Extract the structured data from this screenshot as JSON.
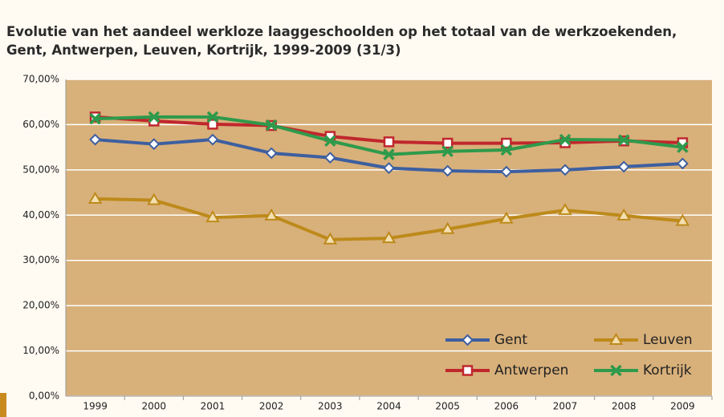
{
  "chart_data": {
    "type": "line",
    "title": "Evolutie van het aandeel werkloze laaggeschoolden op het totaal van de werkzoekenden,",
    "subtitle": "Gent, Antwerpen, Leuven, Kortrijk, 1999-2009 (31/3)",
    "categories": [
      "1999",
      "2000",
      "2001",
      "2002",
      "2003",
      "2004",
      "2005",
      "2006",
      "2007",
      "2008",
      "2009"
    ],
    "series": [
      {
        "name": "Gent",
        "color": "#3d5fa0",
        "marker": "diamond",
        "values": [
          56.7,
          55.7,
          56.7,
          53.7,
          52.7,
          50.4,
          49.8,
          49.6,
          50.0,
          50.7,
          51.4
        ]
      },
      {
        "name": "Antwerpen",
        "color": "#c0272d",
        "marker": "square",
        "values": [
          61.7,
          60.8,
          60.1,
          59.8,
          57.4,
          56.2,
          55.9,
          55.9,
          56.0,
          56.4,
          56.0
        ]
      },
      {
        "name": "Leuven",
        "color": "#bd8a1a",
        "marker": "triangle",
        "values": [
          43.6,
          43.3,
          39.5,
          39.9,
          34.6,
          34.9,
          36.9,
          39.2,
          41.1,
          39.9,
          38.7
        ]
      },
      {
        "name": "Kortrijk",
        "color": "#2e9a4b",
        "marker": "x",
        "values": [
          61.3,
          61.7,
          61.7,
          59.9,
          56.4,
          53.4,
          54.1,
          54.4,
          56.7,
          56.6,
          55.0
        ]
      }
    ],
    "ylim": [
      0,
      70
    ],
    "yticks": [
      {
        "value": 0,
        "label": "0,00%"
      },
      {
        "value": 10,
        "label": "10,00%"
      },
      {
        "value": 20,
        "label": "20,00%"
      },
      {
        "value": 30,
        "label": "30,00%"
      },
      {
        "value": 40,
        "label": "40,00%"
      },
      {
        "value": 50,
        "label": "50,00%"
      },
      {
        "value": 60,
        "label": "60,00%"
      },
      {
        "value": 70,
        "label": "70,00%"
      }
    ],
    "grid": true,
    "legend": "lower right",
    "plot_background": "#d8b07a"
  }
}
